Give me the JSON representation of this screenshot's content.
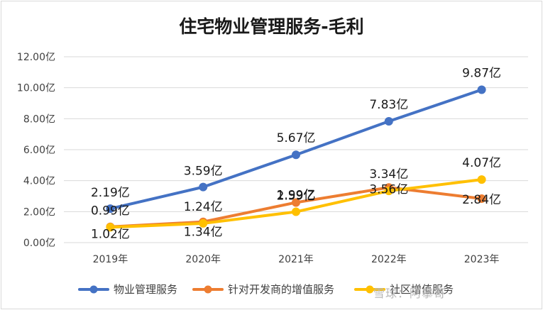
{
  "chart_data": {
    "type": "line",
    "title": "住宅物业管理服务-毛利",
    "xlabel": "",
    "ylabel": "",
    "categories": [
      "2019年",
      "2020年",
      "2021年",
      "2022年",
      "2023年"
    ],
    "ylim": [
      0,
      12
    ],
    "yticks": [
      "0.00亿",
      "2.00亿",
      "4.00亿",
      "6.00亿",
      "8.00亿",
      "10.00亿",
      "12.00亿"
    ],
    "grid": true,
    "legend_position": "bottom",
    "series": [
      {
        "name": "物业管理服务",
        "color": "#4472C4",
        "values": [
          2.19,
          3.59,
          5.67,
          7.83,
          9.87
        ],
        "labels": [
          "2.19亿",
          "3.59亿",
          "5.67亿",
          "7.83亿",
          "9.87亿"
        ]
      },
      {
        "name": "针对开发商的增值服务",
        "color": "#ED7D31",
        "values": [
          1.02,
          1.34,
          2.59,
          3.56,
          2.84
        ],
        "labels": [
          "1.02亿",
          "1.34亿",
          "2.59亿",
          "3.56亿",
          "2.84亿"
        ]
      },
      {
        "name": "社区增值服务",
        "color": "#FFC000",
        "values": [
          0.99,
          1.24,
          1.99,
          3.34,
          4.07
        ],
        "labels": [
          "0.99亿",
          "1.24亿",
          "1.99亿",
          "3.34亿",
          "4.07亿"
        ]
      }
    ]
  },
  "watermark": "雪球：阿攀哥"
}
